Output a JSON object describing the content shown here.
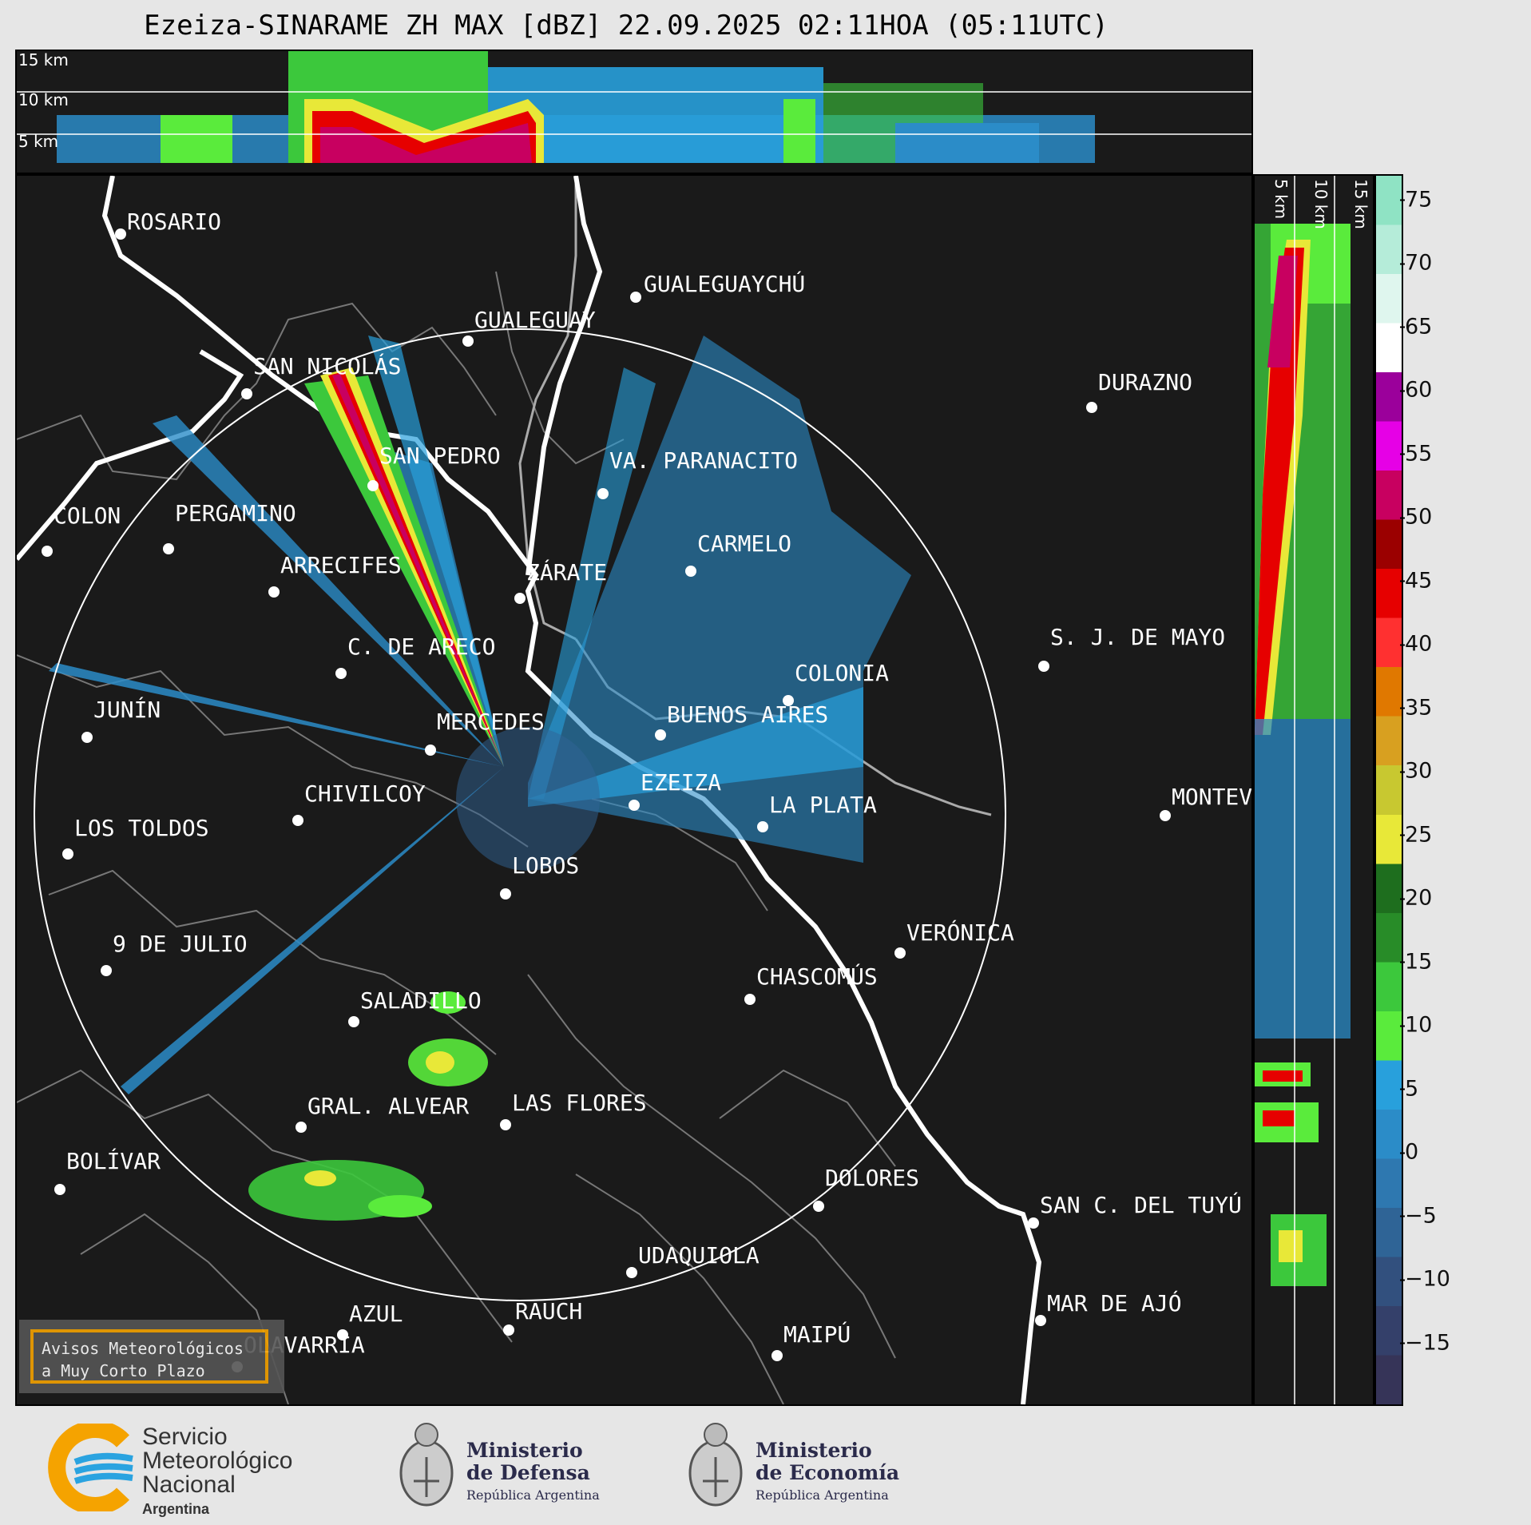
{
  "title": "Ezeiza-SINARAME ZH MAX [dBZ] 22.09.2025 02:11HOA (05:11UTC)",
  "top_panel": {
    "altitude_labels": [
      "15 km",
      "10 km",
      "5 km"
    ]
  },
  "side_panel": {
    "altitude_labels": [
      "5 km",
      "10 km",
      "15 km"
    ]
  },
  "colorbar": {
    "ticks": [
      "75",
      "70",
      "65",
      "60",
      "55",
      "50",
      "45",
      "40",
      "35",
      "30",
      "25",
      "20",
      "15",
      "10",
      "5",
      "0",
      "−5",
      "−10",
      "−15"
    ],
    "stops": [
      "#8fe3c4",
      "#b5ecd9",
      "#dff6ee",
      "#ffffff",
      "#9b009b",
      "#e600e6",
      "#c80060",
      "#9b0000",
      "#e60000",
      "#ff3030",
      "#e07800",
      "#d8a020",
      "#c8c830",
      "#e8e838",
      "#1e6e1e",
      "#288c28",
      "#3cc83c",
      "#5aeb3c",
      "#28a0dc",
      "#2b8cc8",
      "#2e78b0",
      "#2f6496",
      "#32507e",
      "#34406a",
      "#363458"
    ],
    "min": -20,
    "max": 77
  },
  "map": {
    "cities": [
      {
        "name": "ROSARIO"
      },
      {
        "name": "GUALEGUAYCHÚ"
      },
      {
        "name": "GUALEGUAY"
      },
      {
        "name": "SAN NICOLÁS"
      },
      {
        "name": "DURAZNO"
      },
      {
        "name": "SAN PEDRO"
      },
      {
        "name": "VA. PARANACITO"
      },
      {
        "name": "COLON"
      },
      {
        "name": "PERGAMINO"
      },
      {
        "name": "CARMELO"
      },
      {
        "name": "ARRECIFES"
      },
      {
        "name": "ZÁRATE"
      },
      {
        "name": "S. J. DE MAYO"
      },
      {
        "name": "C. DE ARECO"
      },
      {
        "name": "COLONIA"
      },
      {
        "name": "JUNÍN"
      },
      {
        "name": "MERCEDES"
      },
      {
        "name": "BUENOS AIRES"
      },
      {
        "name": "EZEIZA"
      },
      {
        "name": "CHIVILCOY"
      },
      {
        "name": "MONTEV"
      },
      {
        "name": "LA PLATA"
      },
      {
        "name": "LOS TOLDOS"
      },
      {
        "name": "LOBOS"
      },
      {
        "name": "VERÓNICA"
      },
      {
        "name": "9 DE JULIO"
      },
      {
        "name": "CHASCOMÚS"
      },
      {
        "name": "SALADILLO"
      },
      {
        "name": "GRAL. ALVEAR"
      },
      {
        "name": "LAS FLORES"
      },
      {
        "name": "BOLÍVAR"
      },
      {
        "name": "DOLORES"
      },
      {
        "name": "SAN C. DEL TUYÚ"
      },
      {
        "name": "UDAQUIOLA"
      },
      {
        "name": "MAR DE AJÓ"
      },
      {
        "name": "AZUL"
      },
      {
        "name": "RAUCH"
      },
      {
        "name": "OLAVARRÍA"
      },
      {
        "name": "MAIPÚ"
      }
    ]
  },
  "notice": {
    "line1": "Avisos Meteorológicos",
    "line2": "a Muy Corto Plazo"
  },
  "footer": {
    "smn": {
      "line1": "Servicio",
      "line2": "Meteorológico",
      "line3": "Nacional",
      "line4": "Argentina"
    },
    "defensa": {
      "line1": "Ministerio",
      "line2": "de Defensa",
      "line3": "República Argentina"
    },
    "economia": {
      "line1": "Ministerio",
      "line2": "de Economía",
      "line3": "República Argentina"
    }
  }
}
